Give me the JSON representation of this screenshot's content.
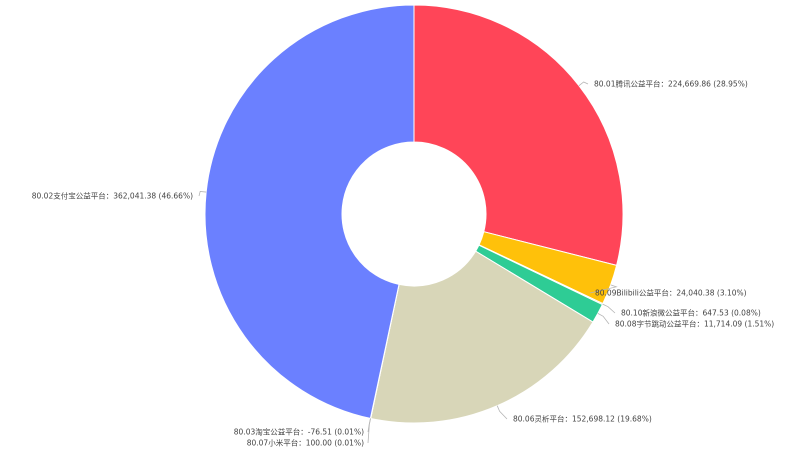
{
  "chart_data": {
    "type": "pie",
    "variant": "donut",
    "title": "",
    "legend": "none",
    "slices": [
      {
        "category": "80.01腾讯公益平台",
        "value": 224669.86,
        "value_label": "224,669.86",
        "percent_label": "28.95%",
        "color": "#ff4558"
      },
      {
        "category": "80.09Bilibili公益平台",
        "value": 24040.38,
        "value_label": "24,040.38",
        "percent_label": "3.10%",
        "color": "#ffc10a"
      },
      {
        "category": "80.10新浪微公益平台",
        "value": 647.53,
        "value_label": "647.53",
        "percent_label": "0.08%",
        "color": "#2bbf86"
      },
      {
        "category": "80.08字节跳动公益平台",
        "value": 11714.09,
        "value_label": "11,714.09",
        "percent_label": "1.51%",
        "color": "#2ecc95"
      },
      {
        "category": "80.06灵析平台",
        "value": 152698.12,
        "value_label": "152,698.12",
        "percent_label": "19.68%",
        "color": "#d8d6b8"
      },
      {
        "category": "80.07小米平台",
        "value": 100.0,
        "value_label": "100.00",
        "percent_label": "0.01%",
        "color": "#8fb8e0"
      },
      {
        "category": "80.03淘宝公益平台",
        "value": -76.51,
        "value_label": "-76.51",
        "percent_label": "0.01%",
        "color": "#a0a0c0"
      },
      {
        "category": "80.02支付宝公益平台",
        "value": 362041.38,
        "value_label": "362,041.38",
        "percent_label": "46.66%",
        "color": "#6b80ff"
      }
    ]
  }
}
